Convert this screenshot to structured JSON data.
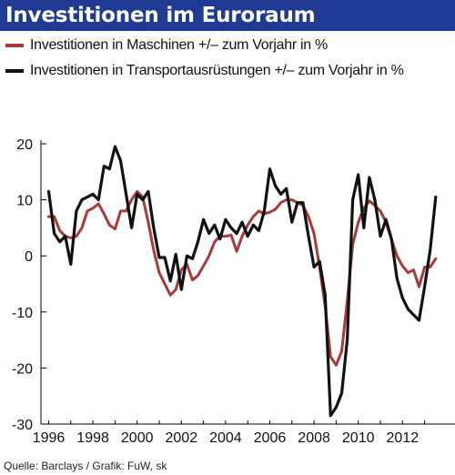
{
  "chart_data": {
    "type": "line",
    "title": "Investitionen im Euroraum",
    "source": "Quelle: Barclays / Grafik: FuW, sk",
    "xlim": [
      1996,
      2014
    ],
    "ylim": [
      -30,
      20
    ],
    "x_ticks": [
      "1996",
      "1998",
      "2000",
      "2002",
      "2004",
      "2006",
      "2008",
      "2010",
      "2012"
    ],
    "y_ticks": [
      "20",
      "10",
      "0",
      "-10",
      "-20",
      "-30"
    ],
    "grid": false,
    "legend_position": "top",
    "series": [
      {
        "name": "Investitionen in Maschinen +/– zum Vorjahr in %",
        "color": "#a83a3a",
        "x": [
          1996.0,
          1996.25,
          1996.5,
          1996.75,
          1997.0,
          1997.25,
          1997.5,
          1997.75,
          1998.0,
          1998.25,
          1998.5,
          1998.75,
          1999.0,
          1999.25,
          1999.5,
          1999.75,
          2000.0,
          2000.25,
          2000.5,
          2000.75,
          2001.0,
          2001.25,
          2001.5,
          2001.75,
          2002.0,
          2002.25,
          2002.5,
          2002.75,
          2003.0,
          2003.25,
          2003.5,
          2003.75,
          2004.0,
          2004.25,
          2004.5,
          2004.75,
          2005.0,
          2005.25,
          2005.5,
          2005.75,
          2006.0,
          2006.25,
          2006.5,
          2006.75,
          2007.0,
          2007.25,
          2007.5,
          2007.75,
          2008.0,
          2008.25,
          2008.5,
          2008.75,
          2009.0,
          2009.25,
          2009.5,
          2009.75,
          2010.0,
          2010.25,
          2010.5,
          2010.75,
          2011.0,
          2011.25,
          2011.5,
          2011.75,
          2012.0,
          2012.25,
          2012.5,
          2012.75,
          2013.0,
          2013.25,
          2013.5
        ],
        "values": [
          7,
          7,
          4.5,
          3.5,
          3.2,
          3.5,
          5,
          8,
          8.5,
          9.3,
          7.5,
          5.5,
          4.8,
          8,
          8,
          10,
          11.5,
          10.5,
          6,
          1,
          -3,
          -5,
          -7,
          -6,
          -2.5,
          -1.5,
          -4.3,
          -3.5,
          -1.8,
          0,
          2.5,
          3.5,
          3.5,
          3.7,
          0.8,
          3.5,
          5.5,
          7,
          8,
          7.5,
          7.8,
          8.3,
          9.5,
          10,
          10,
          9.5,
          9,
          7,
          4,
          -2,
          -9,
          -18,
          -19.5,
          -17,
          -8,
          2,
          6,
          8.5,
          9.8,
          9,
          8,
          6,
          3,
          0,
          -1.8,
          -3,
          -2.5,
          -5.5,
          -2,
          -2,
          -0.5
        ]
      },
      {
        "name": "Investitionen in Transportausrüstungen +/– zum Vorjahr in %",
        "color": "#111111",
        "x": [
          1996.0,
          1996.25,
          1996.5,
          1996.75,
          1997.0,
          1997.25,
          1997.5,
          1997.75,
          1998.0,
          1998.25,
          1998.5,
          1998.75,
          1999.0,
          1999.25,
          1999.5,
          1999.75,
          2000.0,
          2000.25,
          2000.5,
          2000.75,
          2001.0,
          2001.25,
          2001.5,
          2001.75,
          2002.0,
          2002.25,
          2002.5,
          2002.75,
          2003.0,
          2003.25,
          2003.5,
          2003.75,
          2004.0,
          2004.25,
          2004.5,
          2004.75,
          2005.0,
          2005.25,
          2005.5,
          2005.75,
          2006.0,
          2006.25,
          2006.5,
          2006.75,
          2007.0,
          2007.25,
          2007.5,
          2007.75,
          2008.0,
          2008.25,
          2008.5,
          2008.75,
          2009.0,
          2009.25,
          2009.5,
          2009.75,
          2010.0,
          2010.25,
          2010.5,
          2010.75,
          2011.0,
          2011.25,
          2011.5,
          2011.75,
          2012.0,
          2012.25,
          2012.5,
          2012.75,
          2013.0,
          2013.25,
          2013.5
        ],
        "values": [
          11.5,
          4,
          2.5,
          3.5,
          -1.5,
          8,
          10,
          10.5,
          11,
          10,
          16,
          15.5,
          19.5,
          17,
          11,
          5,
          11,
          10,
          11.5,
          5,
          -0.3,
          -0.3,
          -4.5,
          0.3,
          -6,
          0,
          -0.5,
          2.5,
          6.5,
          4,
          5.5,
          3,
          6.5,
          5,
          4,
          6,
          3.5,
          5.5,
          4.5,
          8,
          15.5,
          12.5,
          11,
          12,
          6,
          9.5,
          9.5,
          3.5,
          -2,
          -1,
          -7,
          -28.5,
          -27,
          -24.5,
          -15,
          10,
          14.5,
          5,
          14,
          10,
          3.5,
          6.5,
          3,
          -4,
          -7.5,
          -9.5,
          -10.5,
          -11.5,
          -5.5,
          1,
          10.5
        ]
      }
    ]
  }
}
